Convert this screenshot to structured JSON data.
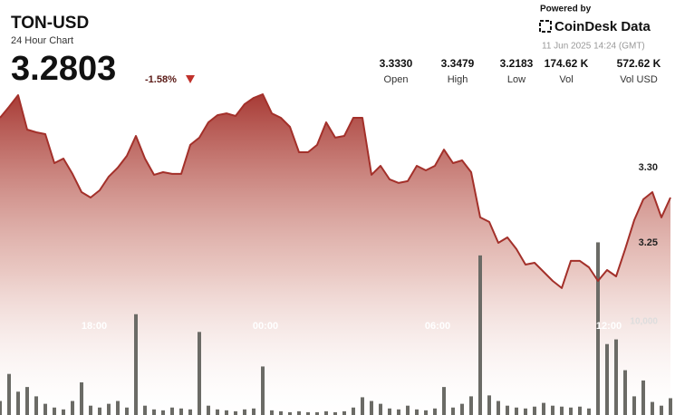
{
  "chart_data": {
    "type": "line",
    "title": "TON-USD",
    "subtitle": "24 Hour Chart",
    "header": {
      "price": "3.2803",
      "change": "-1.58%",
      "powered_by": "Powered by",
      "brand": "CoinDesk Data",
      "timestamp": "11 Jun 2025 14:24 (GMT)",
      "stats": [
        {
          "value": "3.3330",
          "label": "Open"
        },
        {
          "value": "3.3479",
          "label": "High"
        },
        {
          "value": "3.2183",
          "label": "Low"
        },
        {
          "value": "174.62 K",
          "label": "Vol"
        },
        {
          "value": "572.62 K",
          "label": "Vol USD"
        }
      ]
    },
    "x": [
      0,
      1,
      2,
      3,
      4,
      5,
      6,
      7,
      8,
      9,
      10,
      11,
      12,
      13,
      14,
      15,
      16,
      17,
      18,
      19,
      20,
      21,
      22,
      23,
      24,
      25,
      26,
      27,
      28,
      29,
      30,
      31,
      32,
      33,
      34,
      35,
      36,
      37,
      38,
      39,
      40,
      41,
      42,
      43,
      44,
      45,
      46,
      47,
      48,
      49,
      50,
      51,
      52,
      53,
      54,
      55,
      56,
      57,
      58,
      59,
      60,
      61,
      62,
      63,
      64,
      65,
      66,
      67,
      68,
      69,
      70,
      71,
      72,
      73,
      74
    ],
    "values": [
      3.3331,
      3.3404,
      3.3482,
      3.3253,
      3.3235,
      3.3223,
      3.303,
      3.306,
      3.2958,
      3.2837,
      3.2801,
      3.2849,
      3.294,
      3.3,
      3.3078,
      3.3211,
      3.306,
      3.2952,
      3.297,
      3.2958,
      3.2958,
      3.3151,
      3.3199,
      3.3301,
      3.3349,
      3.3361,
      3.3343,
      3.3422,
      3.3464,
      3.3488,
      3.3361,
      3.3331,
      3.3271,
      3.3102,
      3.3102,
      3.3151,
      3.3301,
      3.3199,
      3.3211,
      3.3331,
      3.3331,
      3.2952,
      3.3012,
      3.2922,
      3.2898,
      3.291,
      3.3012,
      3.2982,
      3.3012,
      3.312,
      3.303,
      3.3048,
      3.297,
      3.2669,
      3.2639,
      3.25,
      3.2536,
      3.2458,
      3.2355,
      3.2367,
      3.2307,
      3.2247,
      3.2199,
      3.238,
      3.238,
      3.2337,
      3.2247,
      3.2319,
      3.2277,
      3.2458,
      3.2651,
      3.2789,
      3.2837,
      3.2669,
      3.2801
    ],
    "volume": [
      1500,
      4400,
      2500,
      3000,
      2000,
      1200,
      800,
      600,
      1500,
      3500,
      1000,
      800,
      1200,
      1500,
      800,
      10800,
      1000,
      600,
      500,
      800,
      700,
      600,
      8900,
      1000,
      600,
      500,
      400,
      600,
      700,
      5200,
      500,
      400,
      300,
      400,
      300,
      300,
      400,
      300,
      400,
      800,
      1900,
      1500,
      1200,
      700,
      600,
      1000,
      600,
      500,
      700,
      3000,
      800,
      1200,
      2000,
      17100,
      2100,
      1500,
      1000,
      800,
      700,
      900,
      1300,
      1000,
      900,
      800,
      900,
      700,
      18500,
      7600,
      8100,
      4800,
      2000,
      3700,
      1400,
      1000,
      1800
    ],
    "color": "#a3302a",
    "volume_color": "#6b6b66",
    "xlim": [
      0,
      74.5
    ],
    "xticks": [
      {
        "value": 10.4,
        "label": "18:00"
      },
      {
        "value": 29.3,
        "label": "00:00"
      },
      {
        "value": 48.3,
        "label": "06:00"
      },
      {
        "value": 67.2,
        "label": "12:00"
      }
    ],
    "ylim": [
      3.1355,
      3.3512
    ],
    "yticks": [
      {
        "value": 3.3,
        "label": "3.30"
      },
      3.25
    ],
    "volume_ylim": [
      0,
      34757
    ],
    "volume_yticks": [
      {
        "value": 10000,
        "label": "10,000"
      }
    ]
  }
}
